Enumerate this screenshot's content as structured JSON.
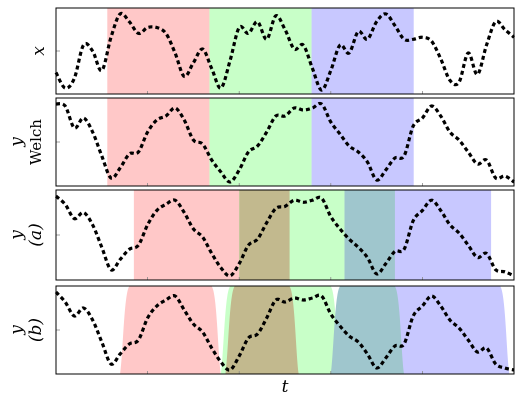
{
  "colors": {
    "red": "#ffc8c8",
    "green": "#c8ffc8",
    "blue": "#c8c8ff",
    "olive": "#c2b98e",
    "teal": "#9fc6cd",
    "curve": "#000000",
    "frame": "#000000",
    "tick": "#888888"
  },
  "chart_data": [
    {
      "type": "line",
      "panel": "x",
      "ylabel": "x",
      "y_tick": 0,
      "xlim": [
        0,
        1
      ],
      "ylim": [
        -1.1,
        1.1
      ],
      "regions": [
        {
          "x0": 0.112,
          "x1": 0.335,
          "color": "red"
        },
        {
          "x0": 0.335,
          "x1": 0.558,
          "color": "green"
        },
        {
          "x0": 0.558,
          "x1": 0.781,
          "color": "blue"
        }
      ],
      "series": [
        {
          "x": [
            0.0,
            0.02,
            0.04,
            0.06,
            0.08,
            0.1,
            0.12,
            0.14,
            0.16,
            0.18,
            0.2,
            0.22,
            0.24,
            0.26,
            0.28,
            0.3,
            0.32,
            0.34,
            0.36,
            0.38,
            0.4,
            0.42,
            0.44,
            0.46,
            0.48,
            0.5,
            0.52,
            0.54,
            0.56,
            0.58,
            0.6,
            0.62,
            0.64,
            0.66,
            0.68,
            0.7,
            0.72,
            0.74,
            0.76,
            0.78,
            0.8,
            0.82,
            0.84,
            0.86,
            0.88,
            0.9,
            0.92,
            0.94,
            0.96,
            0.98,
            1.0
          ],
          "y": [
            -0.55,
            -0.95,
            -0.7,
            0.15,
            0.0,
            -0.5,
            0.35,
            0.95,
            0.75,
            0.45,
            0.6,
            0.6,
            0.45,
            -0.05,
            -0.65,
            -0.3,
            0.05,
            -0.45,
            -0.95,
            -0.25,
            0.6,
            0.45,
            0.75,
            0.3,
            0.9,
            0.55,
            0.05,
            0.15,
            -0.45,
            -1.0,
            -0.5,
            0.15,
            -0.05,
            0.5,
            0.3,
            0.75,
            0.95,
            0.65,
            0.3,
            0.3,
            0.35,
            0.25,
            -0.2,
            -0.75,
            -0.8,
            -0.05,
            -0.6,
            0.15,
            0.75,
            0.55,
            0.35
          ]
        }
      ]
    },
    {
      "type": "line",
      "panel": "welch",
      "ylabel": "y",
      "ylabel2": "Welch",
      "y_tick": 0,
      "xlim": [
        0,
        1
      ],
      "ylim": [
        -1.1,
        1.1
      ],
      "regions": [
        {
          "x0": 0.112,
          "x1": 0.335,
          "color": "red"
        },
        {
          "x0": 0.335,
          "x1": 0.558,
          "color": "green"
        },
        {
          "x0": 0.558,
          "x1": 0.781,
          "color": "blue"
        }
      ],
      "series": [
        {
          "x": [
            0.0,
            0.02,
            0.04,
            0.06,
            0.08,
            0.1,
            0.12,
            0.14,
            0.16,
            0.18,
            0.2,
            0.22,
            0.24,
            0.26,
            0.28,
            0.3,
            0.32,
            0.34,
            0.36,
            0.38,
            0.4,
            0.42,
            0.44,
            0.46,
            0.48,
            0.5,
            0.52,
            0.54,
            0.56,
            0.58,
            0.6,
            0.62,
            0.64,
            0.66,
            0.68,
            0.7,
            0.72,
            0.74,
            0.76,
            0.78,
            0.8,
            0.82,
            0.84,
            0.86,
            0.88,
            0.9,
            0.92,
            0.94,
            0.96,
            0.98,
            1.0
          ],
          "y": [
            0.95,
            0.9,
            0.35,
            0.6,
            0.25,
            -0.35,
            -0.9,
            -0.65,
            -0.3,
            -0.25,
            0.25,
            0.55,
            0.65,
            0.85,
            0.55,
            0.05,
            -0.05,
            -0.45,
            -0.75,
            -1.0,
            -0.7,
            -0.25,
            -0.1,
            0.25,
            0.65,
            0.65,
            0.85,
            0.8,
            0.85,
            0.95,
            0.5,
            0.2,
            -0.1,
            -0.25,
            -0.5,
            -0.95,
            -0.7,
            -0.4,
            -0.35,
            0.4,
            0.6,
            0.9,
            0.65,
            0.25,
            0.05,
            -0.25,
            -0.55,
            -0.45,
            -0.9,
            -0.85,
            -1.0
          ]
        }
      ]
    },
    {
      "type": "line",
      "panel": "a",
      "ylabel": "y",
      "ylabel2": "(a)",
      "y_tick": 0,
      "xlim": [
        0,
        1
      ],
      "ylim": [
        -1.1,
        1.1
      ],
      "regions": [
        {
          "x0": 0.17,
          "x1": 0.4,
          "color": "red"
        },
        {
          "x0": 0.4,
          "x1": 0.63,
          "color": "green"
        },
        {
          "x0": 0.63,
          "x1": 0.95,
          "color": "blue"
        },
        {
          "x0": 0.4,
          "x1": 0.51,
          "color": "olive"
        },
        {
          "x0": 0.63,
          "x1": 0.74,
          "color": "teal"
        }
      ],
      "series": [
        {
          "x": [
            0.0,
            0.02,
            0.04,
            0.06,
            0.08,
            0.1,
            0.12,
            0.14,
            0.16,
            0.18,
            0.2,
            0.22,
            0.24,
            0.26,
            0.28,
            0.3,
            0.32,
            0.34,
            0.36,
            0.38,
            0.4,
            0.42,
            0.44,
            0.46,
            0.48,
            0.5,
            0.52,
            0.54,
            0.56,
            0.58,
            0.6,
            0.62,
            0.64,
            0.66,
            0.68,
            0.7,
            0.72,
            0.74,
            0.76,
            0.78,
            0.8,
            0.82,
            0.84,
            0.86,
            0.88,
            0.9,
            0.92,
            0.94,
            0.96,
            0.98,
            1.0
          ],
          "y": [
            0.95,
            0.75,
            0.4,
            0.55,
            0.25,
            -0.3,
            -0.85,
            -0.6,
            -0.35,
            -0.25,
            0.25,
            0.6,
            0.75,
            0.85,
            0.55,
            0.15,
            -0.05,
            -0.45,
            -0.8,
            -1.0,
            -0.7,
            -0.25,
            -0.1,
            0.3,
            0.65,
            0.7,
            0.85,
            0.8,
            0.85,
            0.9,
            0.45,
            0.15,
            -0.1,
            -0.3,
            -0.55,
            -0.95,
            -0.7,
            -0.4,
            -0.35,
            0.35,
            0.6,
            0.85,
            0.6,
            0.25,
            0.05,
            -0.25,
            -0.55,
            -0.45,
            -0.85,
            -0.9,
            -1.0
          ]
        }
      ]
    },
    {
      "type": "line",
      "panel": "b",
      "ylabel": "y",
      "ylabel2": "(b)",
      "y_tick": 0,
      "xlim": [
        0,
        1
      ],
      "ylim": [
        -1.1,
        1.1
      ],
      "regions": [
        {
          "x0": 0.14,
          "x1": 0.36,
          "color": "red"
        },
        {
          "x0": 0.36,
          "x1": 0.62,
          "color": "green"
        },
        {
          "x0": 0.62,
          "x1": 0.99,
          "color": "blue"
        },
        {
          "x0": 0.37,
          "x1": 0.53,
          "color": "olive"
        },
        {
          "x0": 0.6,
          "x1": 0.76,
          "color": "teal"
        }
      ],
      "series": [
        {
          "x": [
            0.0,
            0.02,
            0.04,
            0.06,
            0.08,
            0.1,
            0.12,
            0.14,
            0.16,
            0.18,
            0.2,
            0.22,
            0.24,
            0.26,
            0.28,
            0.3,
            0.32,
            0.34,
            0.36,
            0.38,
            0.4,
            0.42,
            0.44,
            0.46,
            0.48,
            0.5,
            0.52,
            0.54,
            0.56,
            0.58,
            0.6,
            0.62,
            0.64,
            0.66,
            0.68,
            0.7,
            0.72,
            0.74,
            0.76,
            0.78,
            0.8,
            0.82,
            0.84,
            0.86,
            0.88,
            0.9,
            0.92,
            0.94,
            0.96,
            0.98,
            1.0
          ],
          "y": [
            0.95,
            0.7,
            0.35,
            0.55,
            0.25,
            -0.3,
            -0.85,
            -0.6,
            -0.35,
            -0.25,
            0.3,
            0.6,
            0.75,
            0.85,
            0.5,
            0.15,
            -0.05,
            -0.45,
            -0.8,
            -1.0,
            -0.65,
            -0.2,
            -0.1,
            0.3,
            0.75,
            0.7,
            0.8,
            0.75,
            0.8,
            0.85,
            0.4,
            0.1,
            -0.15,
            -0.3,
            -0.6,
            -0.95,
            -0.7,
            -0.4,
            -0.35,
            0.35,
            0.6,
            0.85,
            0.6,
            0.25,
            0.05,
            -0.25,
            -0.55,
            -0.45,
            -0.85,
            -0.95,
            -1.0
          ]
        }
      ]
    }
  ],
  "xlabel": "t"
}
